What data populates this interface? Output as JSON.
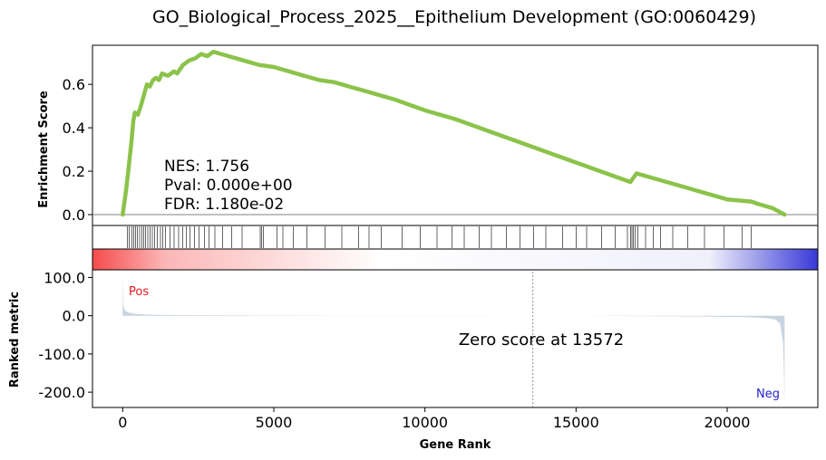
{
  "chart_data": {
    "type": "line",
    "title": "GO_Biological_Process_2025__Epithelium Development (GO:0060429)",
    "xlabel": "Gene Rank",
    "ylabel_top": "Enrichment Score",
    "ylabel_bottom": "Ranked metric",
    "xlim": [
      -1000,
      23000
    ],
    "x_ticks": [
      0,
      5000,
      10000,
      15000,
      20000
    ],
    "es_ylim": [
      -0.05,
      0.78
    ],
    "es_ticks": [
      "0.0",
      "0.2",
      "0.4",
      "0.6"
    ],
    "metric_ylim": [
      -240,
      120
    ],
    "metric_ticks": [
      "100.0",
      "0.0",
      "-100.0",
      "-200.0"
    ],
    "running_es": {
      "x": [
        0,
        100,
        200,
        300,
        350,
        400,
        500,
        600,
        700,
        800,
        900,
        1000,
        1100,
        1200,
        1300,
        1500,
        1700,
        1800,
        2000,
        2200,
        2400,
        2600,
        2800,
        3000,
        3500,
        4000,
        4500,
        5000,
        5500,
        6000,
        6500,
        7000,
        7500,
        8000,
        9000,
        10000,
        11000,
        12000,
        13000,
        14000,
        15000,
        16000,
        16800,
        17000,
        18000,
        19000,
        20000,
        20800,
        21000,
        21500,
        21900
      ],
      "y": [
        0.0,
        0.1,
        0.22,
        0.35,
        0.43,
        0.47,
        0.46,
        0.5,
        0.55,
        0.6,
        0.59,
        0.62,
        0.63,
        0.62,
        0.65,
        0.64,
        0.66,
        0.65,
        0.69,
        0.71,
        0.72,
        0.74,
        0.73,
        0.75,
        0.73,
        0.71,
        0.69,
        0.68,
        0.66,
        0.64,
        0.62,
        0.61,
        0.59,
        0.57,
        0.53,
        0.48,
        0.44,
        0.39,
        0.34,
        0.29,
        0.24,
        0.19,
        0.15,
        0.19,
        0.15,
        0.11,
        0.07,
        0.06,
        0.05,
        0.03,
        0.0
      ]
    },
    "hits": [
      150,
      220,
      300,
      360,
      420,
      480,
      560,
      640,
      700,
      760,
      830,
      900,
      980,
      1050,
      1150,
      1250,
      1330,
      1420,
      1560,
      1700,
      1850,
      1990,
      2100,
      2230,
      2380,
      2520,
      2700,
      2850,
      3050,
      3300,
      3600,
      3950,
      4550,
      4650,
      5100,
      5300,
      5650,
      4600,
      6100,
      6700,
      7250,
      7800,
      8150,
      8550,
      9250,
      9850,
      10400,
      10900,
      11300,
      11800,
      12200,
      12700,
      13150,
      13600,
      14000,
      14550,
      15000,
      15350,
      15850,
      16300,
      16700,
      16800,
      16850,
      16900,
      16950,
      17050,
      17300,
      17550,
      17800,
      18200,
      18700,
      19250,
      19900,
      20500,
      20800
    ],
    "ranked_metric": {
      "x": [
        0,
        20,
        50,
        100,
        200,
        400,
        700,
        1000,
        2000,
        4000,
        6000,
        8000,
        10000,
        12000,
        13572,
        15000,
        17000,
        19000,
        20500,
        21300,
        21600,
        21750,
        21850,
        21880,
        21900
      ],
      "y": [
        100,
        30,
        18,
        12,
        8,
        5,
        3.5,
        2.5,
        1.5,
        0.8,
        0.4,
        0.2,
        0.1,
        0.05,
        0,
        -0.3,
        -1,
        -2,
        -3.5,
        -6,
        -10,
        -20,
        -70,
        -160,
        -230
      ]
    },
    "stats": {
      "nes": "NES: 1.756",
      "pval": "Pval: 0.000e+00",
      "fdr": "FDR: 1.180e-02"
    },
    "zero_score_label": "Zero score at 13572",
    "zero_score_rank": 13572,
    "pos_label": "Pos",
    "neg_label": "Neg",
    "colors": {
      "es_line": "#8bc34a",
      "metric_fill": "#c7d4e0",
      "pos": "#e31a1c",
      "neg": "#2222cc",
      "hit_line": "#000000",
      "zero_line": "#808080"
    }
  }
}
